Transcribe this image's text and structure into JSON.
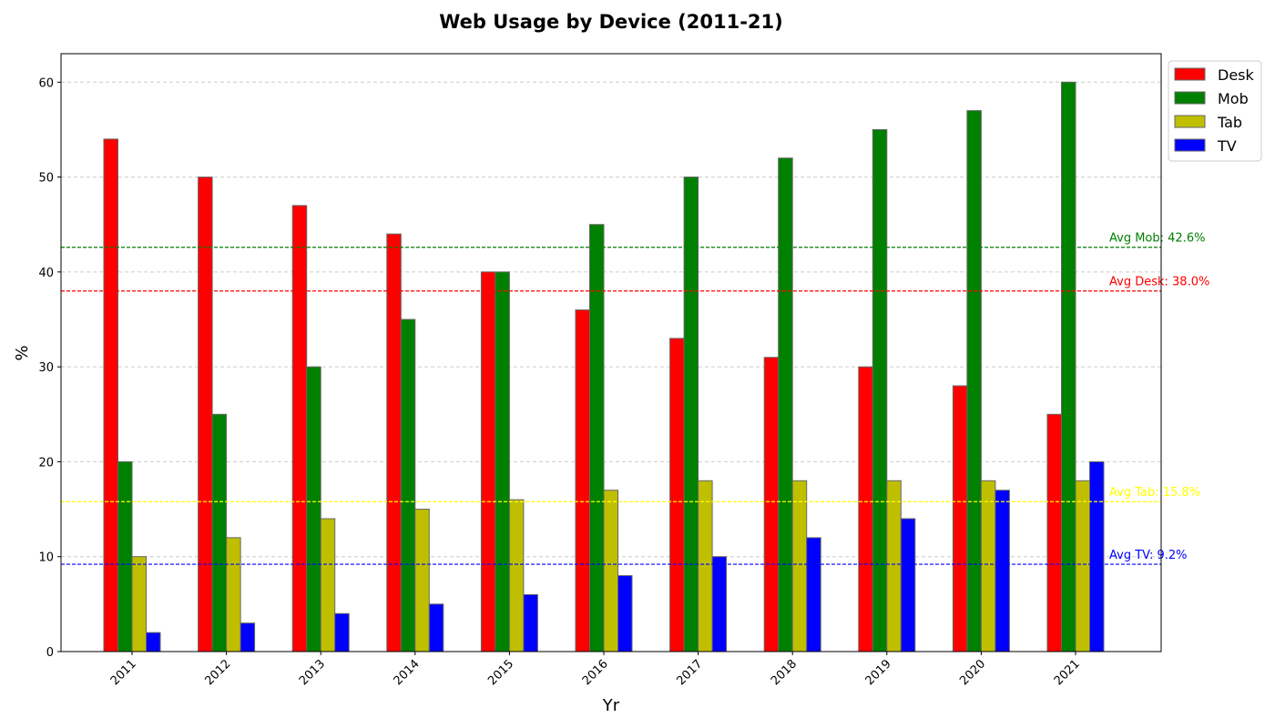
{
  "chart_data": {
    "type": "bar",
    "title": "Web Usage by Device (2011-21)",
    "xlabel": "Yr",
    "ylabel": "%",
    "categories": [
      "2011",
      "2012",
      "2013",
      "2014",
      "2015",
      "2016",
      "2017",
      "2018",
      "2019",
      "2020",
      "2021"
    ],
    "series": [
      {
        "name": "Desk",
        "color": "#ff0000",
        "values": [
          54,
          50,
          47,
          44,
          40,
          36,
          33,
          31,
          30,
          28,
          25
        ]
      },
      {
        "name": "Mob",
        "color": "#008000",
        "values": [
          20,
          25,
          30,
          35,
          40,
          45,
          50,
          52,
          55,
          57,
          60
        ]
      },
      {
        "name": "Tab",
        "color": "#bfbf00",
        "values": [
          10,
          12,
          14,
          15,
          16,
          17,
          18,
          18,
          18,
          18,
          18
        ]
      },
      {
        "name": "TV",
        "color": "#0000ff",
        "values": [
          2,
          3,
          4,
          5,
          6,
          8,
          10,
          12,
          14,
          17,
          20
        ]
      }
    ],
    "averages": [
      {
        "label": "Avg Mob: 42.6%",
        "value": 42.6,
        "color": "#008000"
      },
      {
        "label": "Avg Desk: 38.0%",
        "value": 38.0,
        "color": "#ff0000"
      },
      {
        "label": "Avg Tab: 15.8%",
        "value": 15.8,
        "color": "#ffff00"
      },
      {
        "label": "Avg TV: 9.2%",
        "value": 9.2,
        "color": "#0000ff"
      }
    ],
    "ylim": [
      0,
      63
    ],
    "yticks": [
      0,
      10,
      20,
      30,
      40,
      50,
      60
    ],
    "grid": true,
    "legend_position": "upper right, outside plot"
  }
}
